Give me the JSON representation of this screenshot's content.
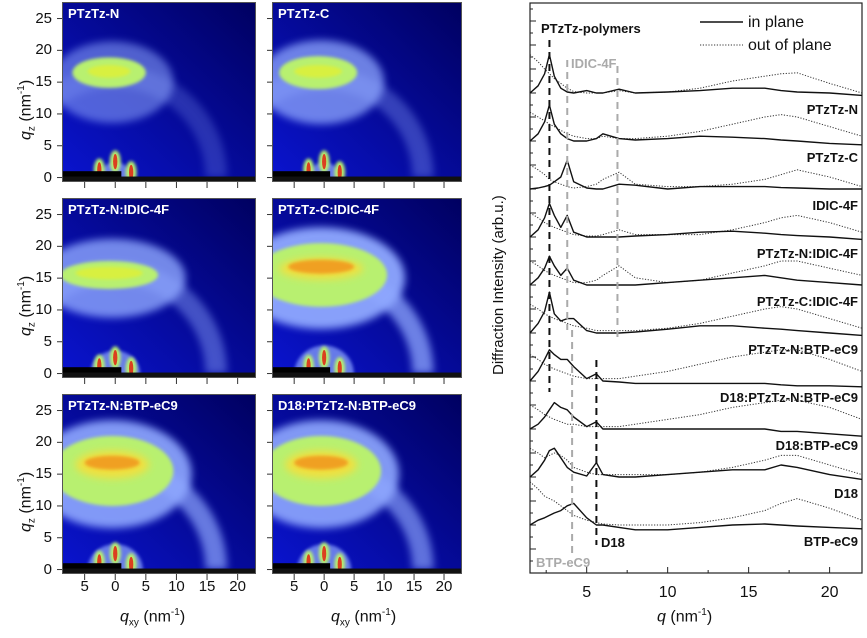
{
  "chart_data": [
    {
      "type": "heatmap",
      "panels": [
        {
          "label": "PTzTz-N"
        },
        {
          "label": "PTzTz-C"
        },
        {
          "label": "PTzTz-N:IDIC-4F"
        },
        {
          "label": "PTzTz-C:IDIC-4F"
        },
        {
          "label": "PTzTz-N:BTP-eC9"
        },
        {
          "label": "D18:PTzTz-N:BTP-eC9"
        }
      ],
      "xlabel": {
        "symbol": "q",
        "sub": "xy",
        "unit": "(nm",
        "exp": "-1",
        "close": ")"
      },
      "ylabel": {
        "symbol": "q",
        "sub": "z",
        "unit": "(nm",
        "exp": "-1",
        "close": ")"
      },
      "xticks": [
        -5,
        0,
        5,
        10,
        15,
        20
      ],
      "xtick_labels": [
        "5",
        "0",
        "5",
        "10",
        "15",
        "20"
      ],
      "yticks": [
        0,
        5,
        10,
        15,
        20,
        25
      ],
      "ytick_labels": [
        "0",
        "5",
        "10",
        "15",
        "20",
        "25"
      ],
      "xlim": [
        -8.7,
        23
      ],
      "ylim": [
        -0.7,
        27.6
      ],
      "colormap": [
        "#000060",
        "#0a14d0",
        "#8fa8ff",
        "#b8f070",
        "#f0e040",
        "#f0a020",
        "#e02010"
      ]
    },
    {
      "type": "line",
      "xlabel": {
        "symbol": "q",
        "unit": "(nm",
        "exp": "-1",
        "close": ")"
      },
      "ylabel": "Diffraction Intensity (arb.u.)",
      "xlim": [
        1.5,
        22
      ],
      "xticks": [
        5,
        10,
        15,
        20
      ],
      "xtick_labels": [
        "5",
        "10",
        "15",
        "20"
      ],
      "legend": {
        "placement": "top-right",
        "entries": [
          {
            "label": "in plane",
            "style": "solid"
          },
          {
            "label": "out of plane",
            "style": "dotted"
          }
        ]
      },
      "x": [
        1.5,
        2,
        2.4,
        2.7,
        3,
        3.4,
        3.8,
        4.2,
        5,
        5.6,
        6,
        7,
        8,
        10,
        12,
        14,
        16,
        17,
        18,
        20,
        22
      ],
      "samples": [
        {
          "name": "PTzTz-N",
          "offset": 10,
          "in_plane": [
            0,
            0.15,
            0.4,
            0.8,
            0.35,
            0.1,
            0.02,
            0,
            0.05,
            0,
            0,
            0.08,
            0,
            0.02,
            0.05,
            0.1,
            0.1,
            0.05,
            0.02,
            0,
            -0.05
          ],
          "out_of_plane": [
            0.8,
            0.65,
            0.5,
            0.4,
            0.3,
            0.2,
            0.1,
            0.03,
            0,
            0,
            0,
            0.05,
            0,
            0.02,
            0.1,
            0.25,
            0.35,
            0.4,
            0.42,
            0.2,
            0
          ]
        },
        {
          "name": "PTzTz-C",
          "offset": 9,
          "in_plane": [
            0,
            0.15,
            0.4,
            0.75,
            0.35,
            0.15,
            0.05,
            0,
            0,
            0.05,
            0.15,
            0.05,
            0.02,
            0.05,
            0.1,
            0.08,
            0.05,
            0.02,
            0,
            -0.05,
            -0.08
          ],
          "out_of_plane": [
            0.6,
            0.5,
            0.42,
            0.35,
            0.3,
            0.22,
            0.15,
            0.1,
            0.05,
            0.05,
            0.1,
            0.05,
            0.05,
            0.1,
            0.2,
            0.35,
            0.5,
            0.55,
            0.5,
            0.3,
            0.1
          ]
        },
        {
          "name": "IDIC-4F",
          "offset": 8,
          "in_plane": [
            0,
            0.02,
            0.05,
            0.08,
            0.15,
            0.25,
            0.6,
            0.15,
            0.02,
            0,
            0,
            0.1,
            0.08,
            0,
            0.05,
            0.05,
            0.05,
            0.03,
            0.02,
            0,
            0
          ],
          "out_of_plane": [
            0.5,
            0.4,
            0.3,
            0.2,
            0.15,
            0.1,
            0.05,
            0.02,
            0.05,
            0.1,
            0.2,
            0.35,
            0.1,
            0.05,
            0.05,
            0.1,
            0.2,
            0.3,
            0.4,
            0.25,
            0.05
          ]
        },
        {
          "name": "PTzTz-N:IDIC-4F",
          "offset": 7,
          "in_plane": [
            0,
            0.15,
            0.4,
            0.7,
            0.45,
            0.2,
            0.45,
            0.1,
            0,
            0,
            0,
            0,
            0.02,
            0.05,
            0.1,
            0.12,
            0.08,
            0.05,
            0.03,
            0,
            -0.05
          ],
          "out_of_plane": [
            0.5,
            0.4,
            0.3,
            0.25,
            0.2,
            0.15,
            0.1,
            0.05,
            0.02,
            0.02,
            0.05,
            0.15,
            0.05,
            0.05,
            0.05,
            0.15,
            0.3,
            0.4,
            0.45,
            0.3,
            0.1
          ]
        },
        {
          "name": "PTzTz-C:IDIC-4F",
          "offset": 6,
          "in_plane": [
            0,
            0.15,
            0.35,
            0.6,
            0.4,
            0.2,
            0.35,
            0.1,
            0,
            0,
            0,
            0,
            0,
            0.05,
            0.1,
            0.15,
            0.2,
            0.15,
            0.1,
            0.05,
            0
          ],
          "out_of_plane": [
            0.5,
            0.4,
            0.3,
            0.25,
            0.2,
            0.15,
            0.1,
            0.05,
            0.05,
            0.1,
            0.2,
            0.4,
            0.15,
            0.05,
            0.1,
            0.25,
            0.4,
            0.5,
            0.5,
            0.35,
            0.2
          ]
        },
        {
          "name": "PTzTz-N:BTP-eC9",
          "offset": 5,
          "in_plane": [
            0,
            0.2,
            0.45,
            0.85,
            0.4,
            0.25,
            0.3,
            0.3,
            0.05,
            0,
            0,
            0,
            0.02,
            0.08,
            0.15,
            0.15,
            0.1,
            0.08,
            0.05,
            0,
            -0.05
          ],
          "out_of_plane": [
            0.6,
            0.5,
            0.4,
            0.35,
            0.3,
            0.25,
            0.2,
            0.15,
            0.1,
            0.05,
            0.05,
            0.05,
            0.05,
            0.1,
            0.2,
            0.35,
            0.5,
            0.55,
            0.5,
            0.3,
            0.1
          ]
        },
        {
          "name": "D18:PTzTz-N:BTP-eC9",
          "offset": 4,
          "in_plane": [
            0,
            0.2,
            0.45,
            0.65,
            0.55,
            0.45,
            0.45,
            0.3,
            0.05,
            0.15,
            0,
            -0.02,
            -0.05,
            -0.05,
            -0.05,
            -0.05,
            -0.05,
            -0.08,
            -0.1,
            -0.1,
            -0.12
          ],
          "out_of_plane": [
            0.55,
            0.45,
            0.35,
            0.3,
            0.25,
            0.2,
            0.15,
            0.1,
            0.05,
            0.05,
            0.05,
            0.05,
            0.1,
            0.2,
            0.35,
            0.5,
            0.6,
            0.65,
            0.65,
            0.45,
            0.2
          ]
        },
        {
          "name": "D18:BTP-eC9",
          "offset": 3,
          "in_plane": [
            0,
            0.1,
            0.25,
            0.4,
            0.55,
            0.45,
            0.4,
            0.25,
            0.05,
            0.15,
            0,
            0,
            0,
            0,
            0,
            0,
            0,
            -0.05,
            -0.05,
            -0.1,
            -0.15
          ],
          "out_of_plane": [
            0.5,
            0.4,
            0.3,
            0.25,
            0.2,
            0.15,
            0.1,
            0.1,
            0.05,
            0.05,
            0.05,
            0.05,
            0.1,
            0.2,
            0.3,
            0.45,
            0.55,
            0.6,
            0.6,
            0.45,
            0.2
          ]
        },
        {
          "name": "D18",
          "offset": 2,
          "in_plane": [
            0,
            0.15,
            0.35,
            0.55,
            0.6,
            0.4,
            0.2,
            0.1,
            0.02,
            0.3,
            0.05,
            0,
            0,
            0.05,
            0.1,
            0.15,
            0.15,
            0.25,
            0.2,
            0.05,
            -0.05
          ],
          "out_of_plane": [
            0.6,
            0.5,
            0.4,
            0.45,
            0.5,
            0.45,
            0.35,
            0.2,
            0.1,
            0.05,
            0.05,
            0.05,
            0.05,
            0.05,
            0.1,
            0.2,
            0.35,
            0.45,
            0.45,
            0.25,
            0.05
          ]
        },
        {
          "name": "BTP-eC9",
          "offset": 1,
          "in_plane": [
            0,
            0.1,
            0.15,
            0.2,
            0.25,
            0.3,
            0.4,
            0.45,
            0.15,
            0,
            0,
            -0.05,
            -0.1,
            -0.1,
            -0.05,
            0,
            0.02,
            0,
            -0.02,
            -0.05,
            -0.08
          ],
          "out_of_plane": [
            0.9,
            0.75,
            0.6,
            0.55,
            0.5,
            0.4,
            0.3,
            0.2,
            0.1,
            0.05,
            0.02,
            0,
            0,
            0,
            0.05,
            0.15,
            0.3,
            0.45,
            0.55,
            0.35,
            0.1
          ]
        }
      ],
      "reference_lines": [
        {
          "label": "PTzTz-polymers",
          "q": 2.7,
          "color": "#111111"
        },
        {
          "label": "IDIC-4F",
          "q": [
            3.8,
            6.9
          ],
          "color": "#aaaaaa"
        },
        {
          "label": "BTP-eC9",
          "q": 4.1,
          "color": "#aaaaaa"
        },
        {
          "label": "D18",
          "q": 5.6,
          "color": "#111111"
        }
      ]
    }
  ]
}
